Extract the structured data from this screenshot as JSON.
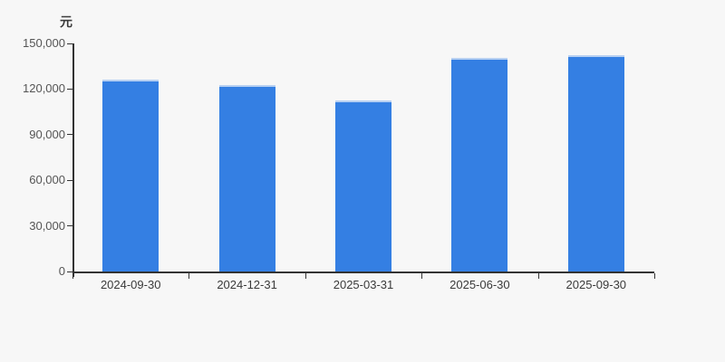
{
  "page": {
    "background": "#f7f7f7"
  },
  "chart_data": {
    "type": "bar",
    "title": "",
    "unit_label": "元",
    "categories": [
      "2024-09-30",
      "2024-12-31",
      "2025-03-31",
      "2025-06-30",
      "2025-09-30"
    ],
    "values": [
      126300,
      122700,
      112700,
      140300,
      142500
    ],
    "xlabel": "",
    "ylabel": "元",
    "ylim": [
      0,
      150000
    ],
    "ytick_step": 30000,
    "ytick_labels": [
      "0",
      "30,000",
      "60,000",
      "90,000",
      "120,000",
      "150,000"
    ],
    "grid": false,
    "legend": false,
    "colors": {
      "bar": "#347fe3",
      "bar_top_highlight": "#b7d0f2",
      "axis": "#333333",
      "tick_label": "#555555",
      "category_label": "#3a3a3a",
      "background": "#f7f7f7"
    }
  }
}
